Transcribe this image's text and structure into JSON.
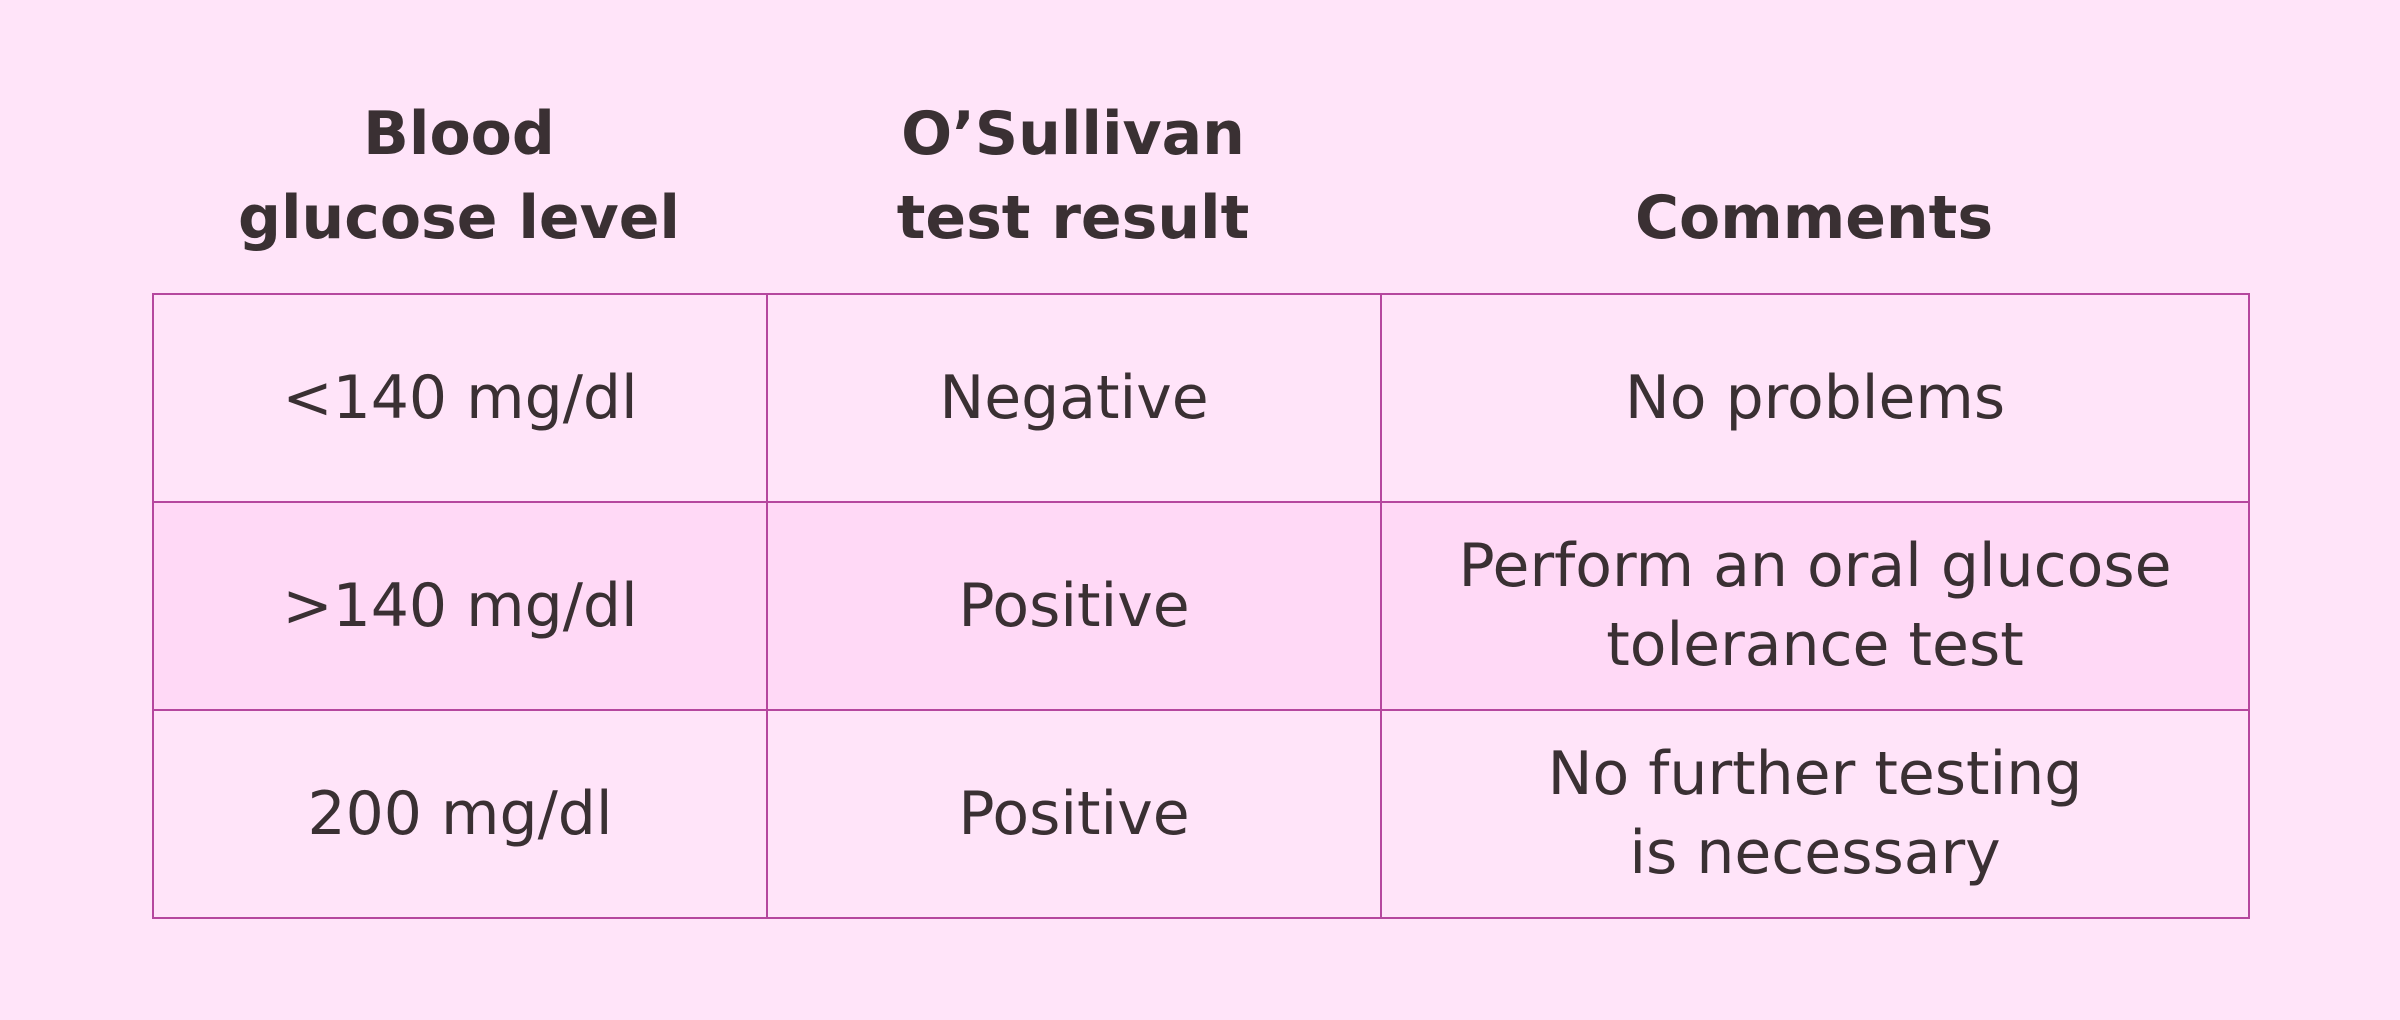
{
  "table": {
    "headers": [
      "Blood\nglucose level",
      "O’Sullivan\ntest result",
      "Comments"
    ],
    "rows": [
      [
        "<140 mg/dl",
        "Negative",
        "No problems"
      ],
      [
        ">140 mg/dl",
        "Positive",
        "Perform an oral glucose\ntolerance test"
      ],
      [
        "200 mg/dl",
        "Positive",
        "No further testing\nis necessary"
      ]
    ]
  },
  "colors": {
    "background": "#ffe4f9",
    "row_highlight": "#ffd9f6",
    "border": "#b5479e",
    "text": "#3a3033"
  }
}
